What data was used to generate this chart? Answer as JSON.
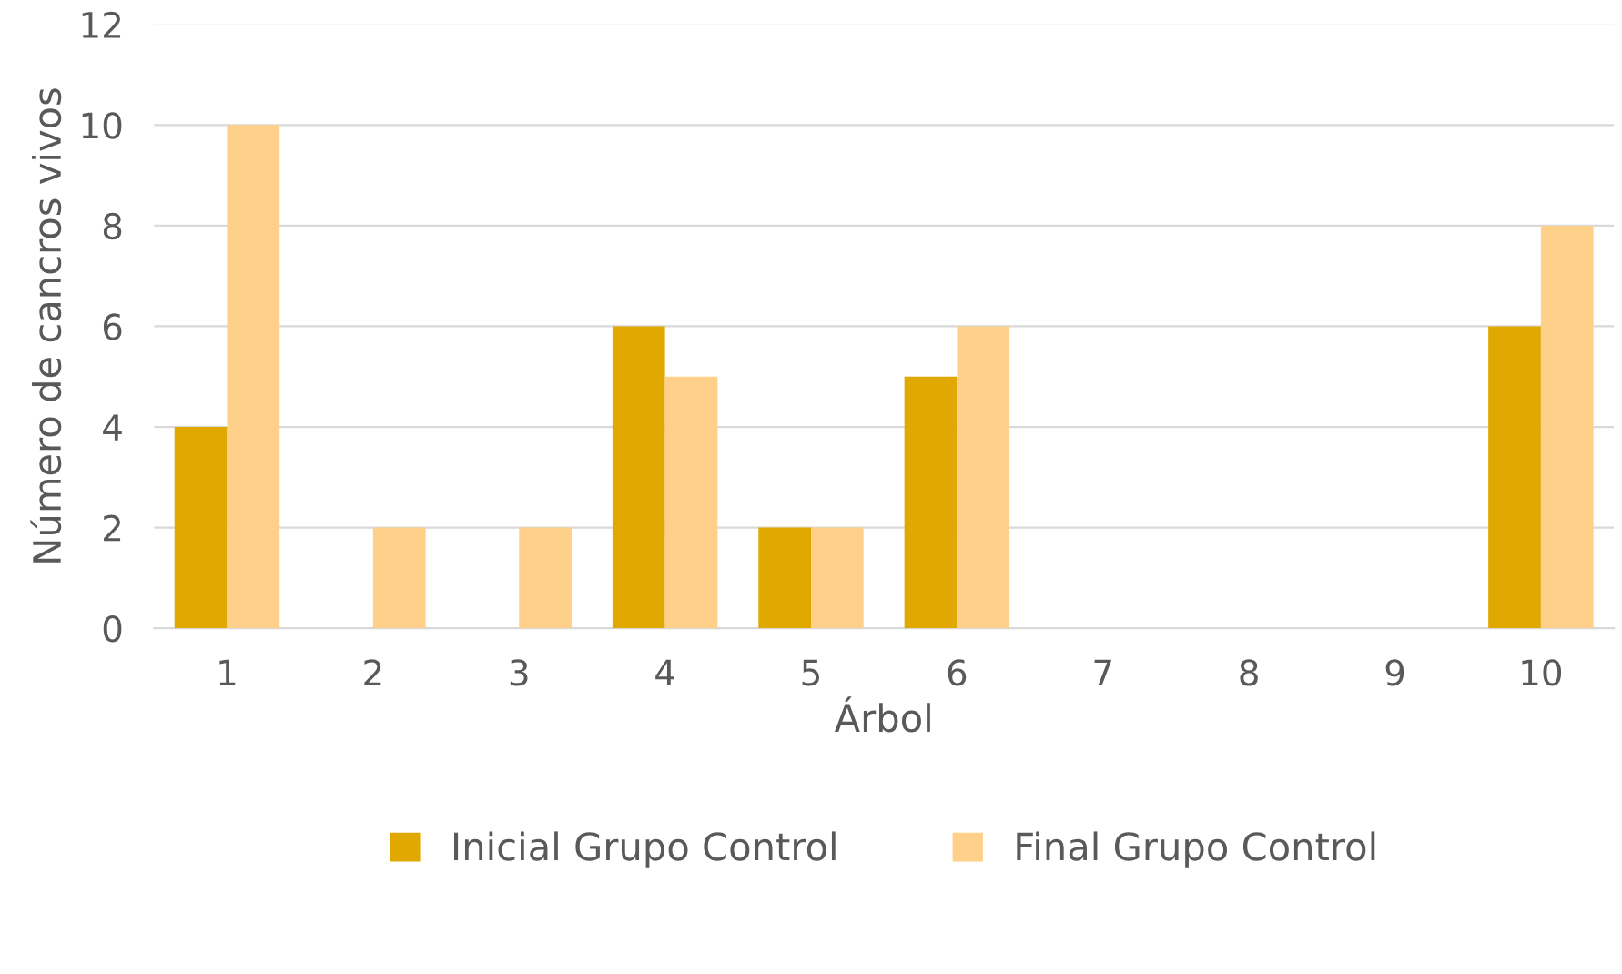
{
  "chart_data": {
    "type": "bar",
    "xlabel": "Árbol",
    "ylabel": "Número de cancros vivos",
    "categories": [
      "1",
      "2",
      "3",
      "4",
      "5",
      "6",
      "7",
      "8",
      "9",
      "10"
    ],
    "series": [
      {
        "name": "Inicial Grupo Control",
        "color": "#e0a800",
        "values": [
          4,
          0,
          0,
          6,
          2,
          5,
          0,
          0,
          0,
          6
        ]
      },
      {
        "name": "Final Grupo Control",
        "color": "#ffd08a",
        "values": [
          10,
          2,
          2,
          5,
          2,
          6,
          0,
          0,
          0,
          8
        ]
      }
    ],
    "ylim": [
      0,
      12
    ],
    "yticks": [
      0,
      2,
      4,
      6,
      8,
      10,
      12
    ],
    "grid": "y",
    "legend": "bottom"
  }
}
